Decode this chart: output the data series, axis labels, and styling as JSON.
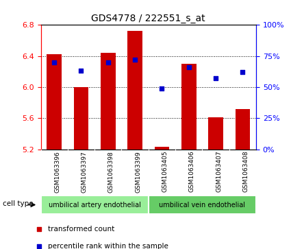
{
  "title": "GDS4778 / 222551_s_at",
  "samples": [
    "GSM1063396",
    "GSM1063397",
    "GSM1063398",
    "GSM1063399",
    "GSM1063405",
    "GSM1063406",
    "GSM1063407",
    "GSM1063408"
  ],
  "bar_values": [
    6.42,
    6.0,
    6.44,
    6.72,
    5.23,
    6.3,
    5.61,
    5.72
  ],
  "percentile_values": [
    70,
    63,
    70,
    72,
    49,
    66,
    57,
    62
  ],
  "bar_bottom": 5.2,
  "ylim_left": [
    5.2,
    6.8
  ],
  "ylim_right": [
    0,
    100
  ],
  "yticks_left": [
    5.2,
    5.6,
    6.0,
    6.4,
    6.8
  ],
  "yticks_right": [
    0,
    25,
    50,
    75,
    100
  ],
  "ytick_right_labels": [
    "0%",
    "25%",
    "50%",
    "75%",
    "100%"
  ],
  "bar_color": "#cc0000",
  "dot_color": "#0000cc",
  "cell_types": [
    {
      "label": "umbilical artery endothelial",
      "span": [
        0,
        4
      ],
      "color": "#99ee99"
    },
    {
      "label": "umbilical vein endothelial",
      "span": [
        4,
        8
      ],
      "color": "#66cc66"
    }
  ],
  "legend_items": [
    {
      "label": "transformed count",
      "color": "#cc0000"
    },
    {
      "label": "percentile rank within the sample",
      "color": "#0000cc"
    }
  ],
  "cell_type_label": "cell type",
  "bg_color": "#ffffff",
  "tick_area_color": "#bbbbbb",
  "bar_width": 0.55
}
